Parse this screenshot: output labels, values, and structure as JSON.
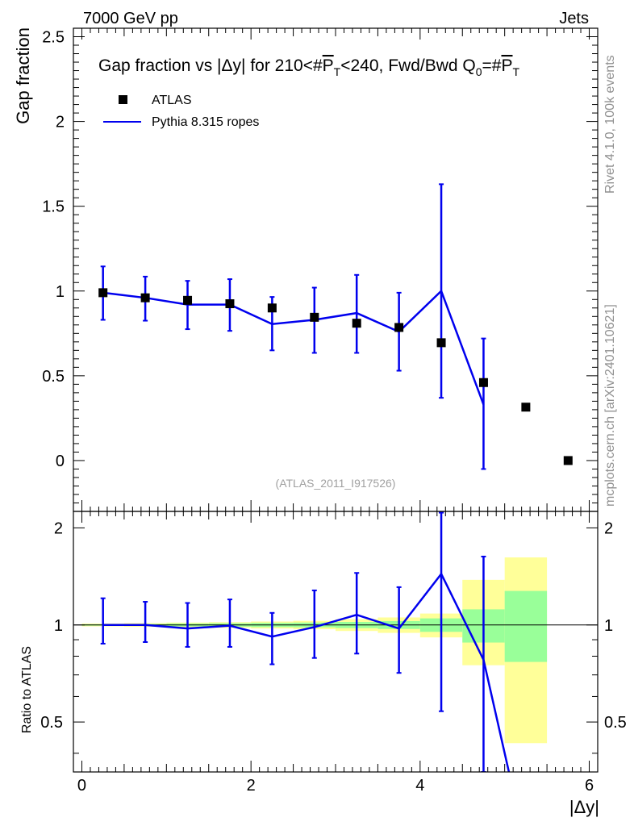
{
  "header": {
    "left": "7000 GeV pp",
    "right": "Jets"
  },
  "side_labels": {
    "rivet": "Rivet 4.1.0,  100k events",
    "mcplots": "mcplots.cern.ch [arXiv:2401.10621]"
  },
  "chart_data": [
    {
      "type": "scatter",
      "title_parts": {
        "prefix": "Gap fraction vs |Δy| for 210<#",
        "p_sym": "P",
        "t_sub": "T",
        "middle": "<240, Fwd/Bwd Q",
        "q_sub": "0",
        "eq": "=#"
      },
      "ylabel": "Gap fraction",
      "ylim": [
        -0.3,
        2.55
      ],
      "yticks": [
        "0",
        "0.5",
        "1",
        "1.5",
        "2",
        "2.5"
      ],
      "ytick_values": [
        0,
        0.5,
        1,
        1.5,
        2,
        2.5
      ],
      "watermark": "(ATLAS_2011_I917526)",
      "legend": [
        {
          "name": "ATLAS",
          "kind": "marker"
        },
        {
          "name": "Pythia 8.315 ropes",
          "kind": "line",
          "color": "#0000ee"
        }
      ],
      "series": [
        {
          "name": "ATLAS",
          "x": [
            0.25,
            0.75,
            1.25,
            1.75,
            2.25,
            2.75,
            3.25,
            3.75,
            4.25,
            4.75,
            5.25,
            5.75
          ],
          "y": [
            0.99,
            0.96,
            0.945,
            0.925,
            0.9,
            0.845,
            0.81,
            0.785,
            0.695,
            0.46,
            0.315,
            0.0
          ]
        },
        {
          "name": "Pythia 8.315 ropes",
          "color": "#0000ee",
          "x": [
            0.25,
            0.75,
            1.25,
            1.75,
            2.25,
            2.75,
            3.25,
            3.75,
            4.25,
            4.75
          ],
          "y": [
            0.99,
            0.96,
            0.92,
            0.92,
            0.805,
            0.83,
            0.87,
            0.76,
            1.0,
            0.33
          ],
          "err_low": [
            0.83,
            0.825,
            0.775,
            0.765,
            0.65,
            0.635,
            0.635,
            0.53,
            0.37,
            -0.05
          ],
          "err_high": [
            1.145,
            1.085,
            1.06,
            1.07,
            0.965,
            1.02,
            1.095,
            0.99,
            1.63,
            0.72
          ]
        }
      ]
    },
    {
      "type": "ratio",
      "ylabel": "Ratio to ATLAS",
      "xlabel": "|Δy|",
      "xlim": [
        -0.1,
        6.1
      ],
      "xticks": [
        "0",
        "2",
        "4",
        "6"
      ],
      "xtick_values": [
        0,
        2,
        4,
        6
      ],
      "ylim": [
        0.35,
        2.25
      ],
      "yticks": [
        "0.5",
        "1",
        "2"
      ],
      "ytick_values": [
        0.5,
        1,
        2
      ],
      "reference_line": 1,
      "band_bins": [
        [
          0,
          0.5
        ],
        [
          0.5,
          1
        ],
        [
          1,
          1.5
        ],
        [
          1.5,
          2
        ],
        [
          2,
          2.5
        ],
        [
          2.5,
          3
        ],
        [
          3,
          3.5
        ],
        [
          3.5,
          4
        ],
        [
          4,
          4.5
        ],
        [
          4.5,
          5
        ],
        [
          5,
          5.5
        ]
      ],
      "green_band": [
        [
          0.995,
          1.005
        ],
        [
          0.993,
          1.007
        ],
        [
          0.99,
          1.01
        ],
        [
          0.988,
          1.012
        ],
        [
          0.985,
          1.015
        ],
        [
          0.983,
          1.017
        ],
        [
          0.978,
          1.022
        ],
        [
          0.972,
          1.028
        ],
        [
          0.952,
          1.048
        ],
        [
          0.882,
          1.118
        ],
        [
          0.768,
          1.275
        ]
      ],
      "yellow_band": [
        [
          0.99,
          1.01
        ],
        [
          0.987,
          1.013
        ],
        [
          0.983,
          1.017
        ],
        [
          0.98,
          1.02
        ],
        [
          0.975,
          1.025
        ],
        [
          0.97,
          1.03
        ],
        [
          0.958,
          1.042
        ],
        [
          0.945,
          1.055
        ],
        [
          0.915,
          1.085
        ],
        [
          0.75,
          1.38
        ],
        [
          0.43,
          1.62
        ]
      ],
      "series": [
        {
          "name": "Pythia 8.315 ropes",
          "color": "#0000ee",
          "x": [
            0.25,
            0.75,
            1.25,
            1.75,
            2.25,
            2.75,
            3.25,
            3.75,
            4.25,
            4.75,
            5.05
          ],
          "y": [
            1.0,
            1.0,
            0.975,
            0.995,
            0.92,
            0.985,
            1.075,
            0.975,
            1.44,
            0.78,
            0.35
          ],
          "err_low": [
            0.875,
            0.885,
            0.855,
            0.855,
            0.755,
            0.79,
            0.815,
            0.71,
            0.54,
            0.35
          ],
          "err_high": [
            1.21,
            1.18,
            1.17,
            1.2,
            1.09,
            1.28,
            1.45,
            1.31,
            2.23,
            1.63
          ]
        }
      ]
    }
  ]
}
